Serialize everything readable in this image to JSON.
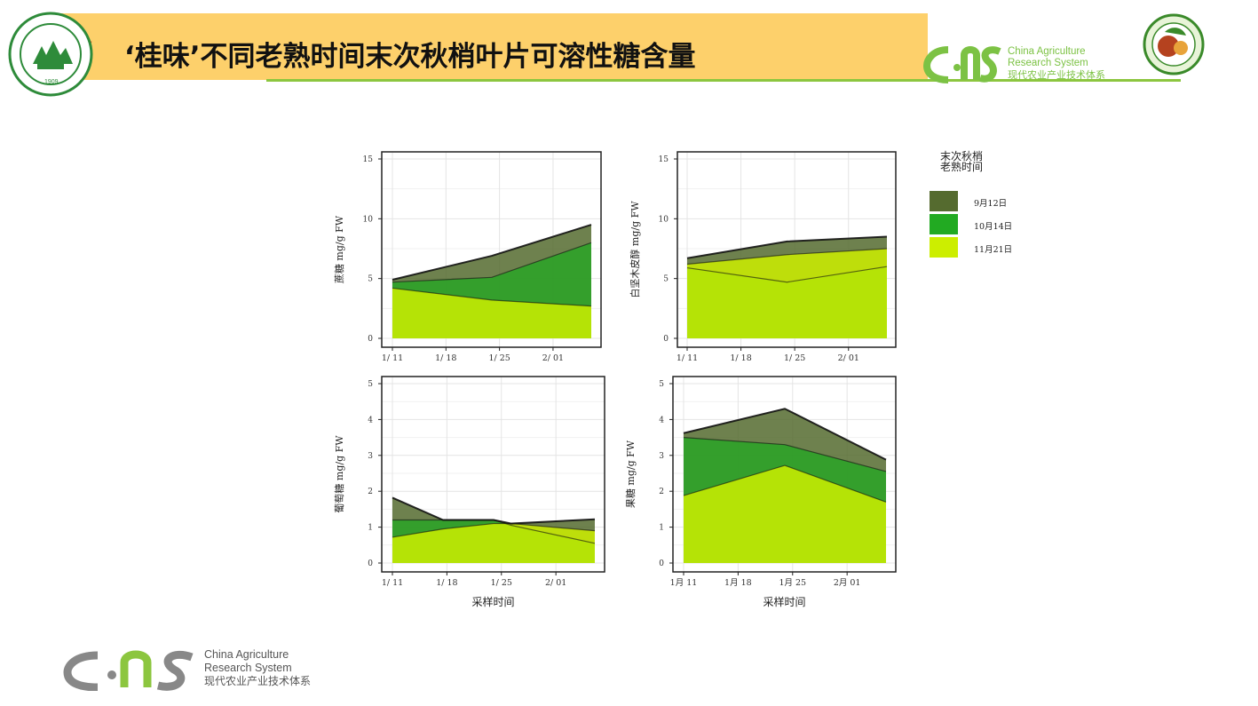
{
  "slide": {
    "check_mark": "✓",
    "title": "‘桂味’不同老熟时间末次秋梢叶片可溶性糖含量"
  },
  "logos": {
    "caps_en_line1": "China Agriculture",
    "caps_en_line2": "Research System",
    "caps_cn": "现代农业产业技术体系",
    "university_year": "1909"
  },
  "legend": {
    "title_line1": "末次秋梢",
    "title_line2": "老熟时间",
    "items": [
      {
        "label": "9月12日",
        "color": "#556b2f"
      },
      {
        "label": "10月14日",
        "color": "#22aa22"
      },
      {
        "label": "11月21日",
        "color": "#ccee00"
      }
    ]
  },
  "chart_data": [
    {
      "type": "area",
      "ylabel": "蔗糖 mg/g FW",
      "xlabel": "",
      "x_ticks": [
        "1/ 11",
        "1/ 18",
        "1/ 25",
        "2/ 01"
      ],
      "x": [
        0,
        2,
        4
      ],
      "ylim": [
        0,
        15
      ],
      "y_ticks": [
        0,
        5,
        10,
        15
      ],
      "grid": true,
      "series": [
        {
          "name": "9月12日",
          "values": [
            4.9,
            6.9,
            9.5
          ]
        },
        {
          "name": "10月14日",
          "values": [
            4.7,
            5.1,
            8.0
          ]
        },
        {
          "name": "11月21日",
          "values": [
            4.2,
            3.2,
            2.7
          ]
        }
      ]
    },
    {
      "type": "area",
      "ylabel": "白坚木皮醇 mg/g FW",
      "xlabel": "",
      "x_ticks": [
        "1/ 11",
        "1/ 18",
        "1/ 25",
        "2/ 01"
      ],
      "x": [
        0,
        2,
        4
      ],
      "ylim": [
        0,
        15
      ],
      "y_ticks": [
        0,
        5,
        10,
        15
      ],
      "grid": true,
      "series": [
        {
          "name": "9月12日",
          "values": [
            6.7,
            8.1,
            8.5
          ]
        },
        {
          "name": "10月14日",
          "values": [
            5.9,
            4.7,
            6.0
          ]
        },
        {
          "name": "11月21日",
          "values": [
            6.2,
            7.0,
            7.5
          ]
        }
      ]
    },
    {
      "type": "area",
      "ylabel": "葡萄糖 mg/g FW",
      "xlabel": "采样时间",
      "x_ticks": [
        "1/ 11",
        "1/ 18",
        "1/ 25",
        "2/ 01"
      ],
      "x": [
        0,
        1,
        2,
        2.35,
        4
      ],
      "ylim": [
        0,
        5
      ],
      "y_ticks": [
        0,
        1,
        2,
        3,
        4,
        5
      ],
      "grid": true,
      "series": [
        {
          "name": "9月12日",
          "values": [
            1.82,
            1.2,
            1.2,
            1.1,
            1.22
          ]
        },
        {
          "name": "10月14日",
          "values": [
            1.2,
            1.2,
            1.2,
            1.05,
            0.55
          ]
        },
        {
          "name": "11月21日",
          "values": [
            0.72,
            0.95,
            1.1,
            1.1,
            0.9
          ]
        }
      ]
    },
    {
      "type": "area",
      "ylabel": "果糖 mg/g FW",
      "xlabel": "采样时间",
      "x_ticks": [
        "1月 11",
        "1月 18",
        "1月 25",
        "2月 01"
      ],
      "x": [
        0,
        2,
        4
      ],
      "ylim": [
        0,
        5
      ],
      "y_ticks": [
        0,
        1,
        2,
        3,
        4,
        5
      ],
      "grid": true,
      "series": [
        {
          "name": "9月12日",
          "values": [
            3.62,
            4.3,
            2.88
          ]
        },
        {
          "name": "10月14日",
          "values": [
            3.5,
            3.3,
            2.55
          ]
        },
        {
          "name": "11月21日",
          "values": [
            1.88,
            2.72,
            1.7
          ]
        }
      ]
    }
  ]
}
